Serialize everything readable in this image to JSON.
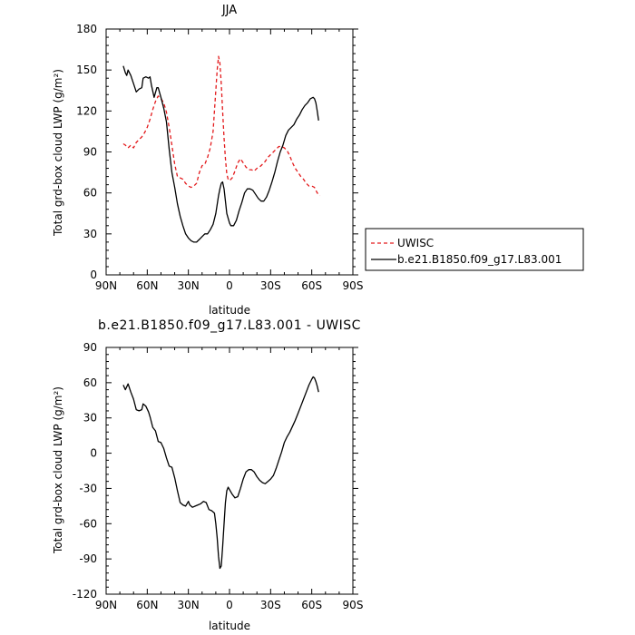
{
  "chart_data": [
    {
      "type": "line",
      "title": "JJA",
      "xlabel": "latitude",
      "ylabel": "Total grd-box cloud LWP (g/m²)",
      "xlim": [
        90,
        -90
      ],
      "ylim": [
        0,
        180
      ],
      "x_ticks": [
        90,
        60,
        30,
        0,
        -30,
        -60,
        -90
      ],
      "x_tick_labels": [
        "90N",
        "60N",
        "30N",
        "0",
        "30S",
        "60S",
        "90S"
      ],
      "y_ticks": [
        0,
        30,
        60,
        90,
        120,
        150,
        180
      ],
      "y_tick_labels": [
        "0",
        "30",
        "60",
        "90",
        "120",
        "150",
        "180"
      ],
      "legend_position": "outside-right",
      "series": [
        {
          "name": "UWISC",
          "color": "#e31a1c",
          "dash": "dashed",
          "points": [
            [
              77.5,
              96
            ],
            [
              76,
              95
            ],
            [
              74,
              93
            ],
            [
              72,
              95
            ],
            [
              70,
              93
            ],
            [
              68,
              97
            ],
            [
              66,
              99
            ],
            [
              64,
              101
            ],
            [
              62,
              104
            ],
            [
              60,
              108
            ],
            [
              58,
              114
            ],
            [
              56,
              121
            ],
            [
              54,
              127
            ],
            [
              52,
              131
            ],
            [
              50,
              129
            ],
            [
              48,
              126
            ],
            [
              46,
              119
            ],
            [
              44,
              108
            ],
            [
              42,
              95
            ],
            [
              40,
              81
            ],
            [
              38,
              72
            ],
            [
              36,
              71
            ],
            [
              34,
              70
            ],
            [
              32,
              67
            ],
            [
              30,
              65
            ],
            [
              28,
              64
            ],
            [
              26,
              65
            ],
            [
              24,
              67
            ],
            [
              22,
              75
            ],
            [
              20,
              80
            ],
            [
              18,
              81
            ],
            [
              16,
              86
            ],
            [
              14,
              93
            ],
            [
              12,
              105
            ],
            [
              11,
              120
            ],
            [
              10,
              135
            ],
            [
              9,
              150
            ],
            [
              8,
              160
            ],
            [
              7,
              155
            ],
            [
              6,
              140
            ],
            [
              5,
              120
            ],
            [
              4,
              100
            ],
            [
              3,
              85
            ],
            [
              2,
              74
            ],
            [
              1,
              70
            ],
            [
              0,
              69
            ],
            [
              -2,
              71
            ],
            [
              -4,
              76
            ],
            [
              -6,
              82
            ],
            [
              -8,
              85
            ],
            [
              -10,
              82
            ],
            [
              -12,
              79
            ],
            [
              -14,
              77
            ],
            [
              -16,
              77
            ],
            [
              -18,
              76
            ],
            [
              -20,
              78
            ],
            [
              -22,
              79
            ],
            [
              -24,
              81
            ],
            [
              -26,
              83
            ],
            [
              -28,
              86
            ],
            [
              -30,
              88
            ],
            [
              -32,
              90
            ],
            [
              -34,
              92
            ],
            [
              -36,
              94
            ],
            [
              -38,
              94
            ],
            [
              -40,
              93
            ],
            [
              -42,
              91
            ],
            [
              -44,
              87
            ],
            [
              -46,
              82
            ],
            [
              -48,
              78
            ],
            [
              -50,
              75
            ],
            [
              -52,
              72
            ],
            [
              -54,
              70
            ],
            [
              -56,
              67
            ],
            [
              -58,
              65
            ],
            [
              -60,
              65
            ],
            [
              -62,
              64
            ],
            [
              -64,
              60
            ],
            [
              -65,
              59
            ],
            [
              -66,
              58
            ]
          ]
        },
        {
          "name": "b.e21.B1850.f09_g17.L83.001",
          "color": "#000000",
          "dash": "solid",
          "points": [
            [
              77.5,
              153
            ],
            [
              76,
              148
            ],
            [
              75,
              146
            ],
            [
              74,
              150
            ],
            [
              72,
              146
            ],
            [
              70,
              140
            ],
            [
              68,
              134
            ],
            [
              66,
              136
            ],
            [
              64,
              137
            ],
            [
              63,
              144
            ],
            [
              61,
              145
            ],
            [
              59,
              144
            ],
            [
              58,
              145
            ],
            [
              57,
              139
            ],
            [
              55,
              130
            ],
            [
              53,
              137
            ],
            [
              52,
              137
            ],
            [
              50,
              130
            ],
            [
              48,
              122
            ],
            [
              46,
              112
            ],
            [
              44,
              92
            ],
            [
              42,
              75
            ],
            [
              40,
              64
            ],
            [
              38,
              52
            ],
            [
              36,
              43
            ],
            [
              34,
              36
            ],
            [
              32,
              30
            ],
            [
              30,
              27
            ],
            [
              28,
              25
            ],
            [
              26,
              24
            ],
            [
              24,
              24
            ],
            [
              22,
              26
            ],
            [
              20,
              28
            ],
            [
              18,
              30
            ],
            [
              16,
              30
            ],
            [
              14,
              33
            ],
            [
              12,
              37
            ],
            [
              10,
              45
            ],
            [
              8,
              58
            ],
            [
              7,
              63
            ],
            [
              6,
              67
            ],
            [
              5,
              68
            ],
            [
              4,
              63
            ],
            [
              3,
              54
            ],
            [
              2,
              45
            ],
            [
              0,
              38
            ],
            [
              -1,
              36
            ],
            [
              -3,
              36
            ],
            [
              -5,
              40
            ],
            [
              -7,
              47
            ],
            [
              -9,
              53
            ],
            [
              -11,
              60
            ],
            [
              -13,
              63
            ],
            [
              -15,
              63
            ],
            [
              -17,
              62
            ],
            [
              -19,
              59
            ],
            [
              -21,
              56
            ],
            [
              -23,
              54
            ],
            [
              -25,
              54
            ],
            [
              -27,
              57
            ],
            [
              -29,
              62
            ],
            [
              -31,
              68
            ],
            [
              -33,
              75
            ],
            [
              -35,
              83
            ],
            [
              -37,
              90
            ],
            [
              -39,
              95
            ],
            [
              -41,
              102
            ],
            [
              -43,
              106
            ],
            [
              -45,
              108
            ],
            [
              -47,
              110
            ],
            [
              -49,
              114
            ],
            [
              -51,
              117
            ],
            [
              -53,
              121
            ],
            [
              -55,
              124
            ],
            [
              -57,
              126
            ],
            [
              -59,
              129
            ],
            [
              -61,
              130
            ],
            [
              -62,
              129
            ],
            [
              -63,
              126
            ],
            [
              -64,
              120
            ],
            [
              -65,
              113
            ]
          ]
        }
      ]
    },
    {
      "type": "line",
      "title": "b.e21.B1850.f09_g17.L83.001 - UWISC",
      "xlabel": "latitude",
      "ylabel": "Total grd-box cloud LWP (g/m²)",
      "xlim": [
        90,
        -90
      ],
      "ylim": [
        -120,
        90
      ],
      "x_ticks": [
        90,
        60,
        30,
        0,
        -30,
        -60,
        -90
      ],
      "x_tick_labels": [
        "90N",
        "60N",
        "30N",
        "0",
        "30S",
        "60S",
        "90S"
      ],
      "y_ticks": [
        -120,
        -90,
        -60,
        -30,
        0,
        30,
        60,
        90
      ],
      "y_tick_labels": [
        "-120",
        "-90",
        "-60",
        "-30",
        "0",
        "30",
        "60",
        "90"
      ],
      "series": [
        {
          "color": "#000000",
          "dash": "solid",
          "points": [
            [
              77.5,
              58
            ],
            [
              76,
              54
            ],
            [
              74,
              59
            ],
            [
              72,
              52
            ],
            [
              70,
              46
            ],
            [
              68,
              37
            ],
            [
              66,
              36
            ],
            [
              64,
              37
            ],
            [
              63,
              42
            ],
            [
              61,
              40
            ],
            [
              59,
              35
            ],
            [
              58,
              31
            ],
            [
              56,
              22
            ],
            [
              54,
              19
            ],
            [
              52,
              10
            ],
            [
              50,
              9
            ],
            [
              48,
              4
            ],
            [
              46,
              -4
            ],
            [
              44,
              -11
            ],
            [
              42,
              -12
            ],
            [
              40,
              -21
            ],
            [
              38,
              -32
            ],
            [
              36,
              -42
            ],
            [
              34,
              -44
            ],
            [
              32,
              -45
            ],
            [
              30,
              -41
            ],
            [
              29,
              -44
            ],
            [
              27,
              -46
            ],
            [
              25,
              -45
            ],
            [
              23,
              -44
            ],
            [
              21,
              -43
            ],
            [
              19,
              -41
            ],
            [
              17,
              -42
            ],
            [
              15,
              -48
            ],
            [
              13,
              -49
            ],
            [
              11,
              -51
            ],
            [
              10,
              -60
            ],
            [
              9,
              -72
            ],
            [
              8,
              -88
            ],
            [
              7,
              -98
            ],
            [
              6,
              -96
            ],
            [
              5,
              -80
            ],
            [
              4,
              -60
            ],
            [
              3,
              -42
            ],
            [
              2,
              -32
            ],
            [
              1,
              -29
            ],
            [
              0,
              -31
            ],
            [
              -2,
              -35
            ],
            [
              -4,
              -38
            ],
            [
              -6,
              -37
            ],
            [
              -8,
              -30
            ],
            [
              -10,
              -22
            ],
            [
              -12,
              -16
            ],
            [
              -14,
              -14
            ],
            [
              -16,
              -14
            ],
            [
              -18,
              -16
            ],
            [
              -20,
              -20
            ],
            [
              -22,
              -23
            ],
            [
              -24,
              -25
            ],
            [
              -26,
              -26
            ],
            [
              -28,
              -24
            ],
            [
              -30,
              -22
            ],
            [
              -32,
              -19
            ],
            [
              -34,
              -13
            ],
            [
              -36,
              -6
            ],
            [
              -38,
              1
            ],
            [
              -40,
              9
            ],
            [
              -42,
              14
            ],
            [
              -44,
              18
            ],
            [
              -46,
              23
            ],
            [
              -48,
              28
            ],
            [
              -50,
              34
            ],
            [
              -52,
              40
            ],
            [
              -54,
              46
            ],
            [
              -56,
              52
            ],
            [
              -58,
              58
            ],
            [
              -60,
              63
            ],
            [
              -61,
              65
            ],
            [
              -62,
              64
            ],
            [
              -63,
              61
            ],
            [
              -64,
              57
            ],
            [
              -65,
              52
            ]
          ]
        }
      ]
    }
  ]
}
